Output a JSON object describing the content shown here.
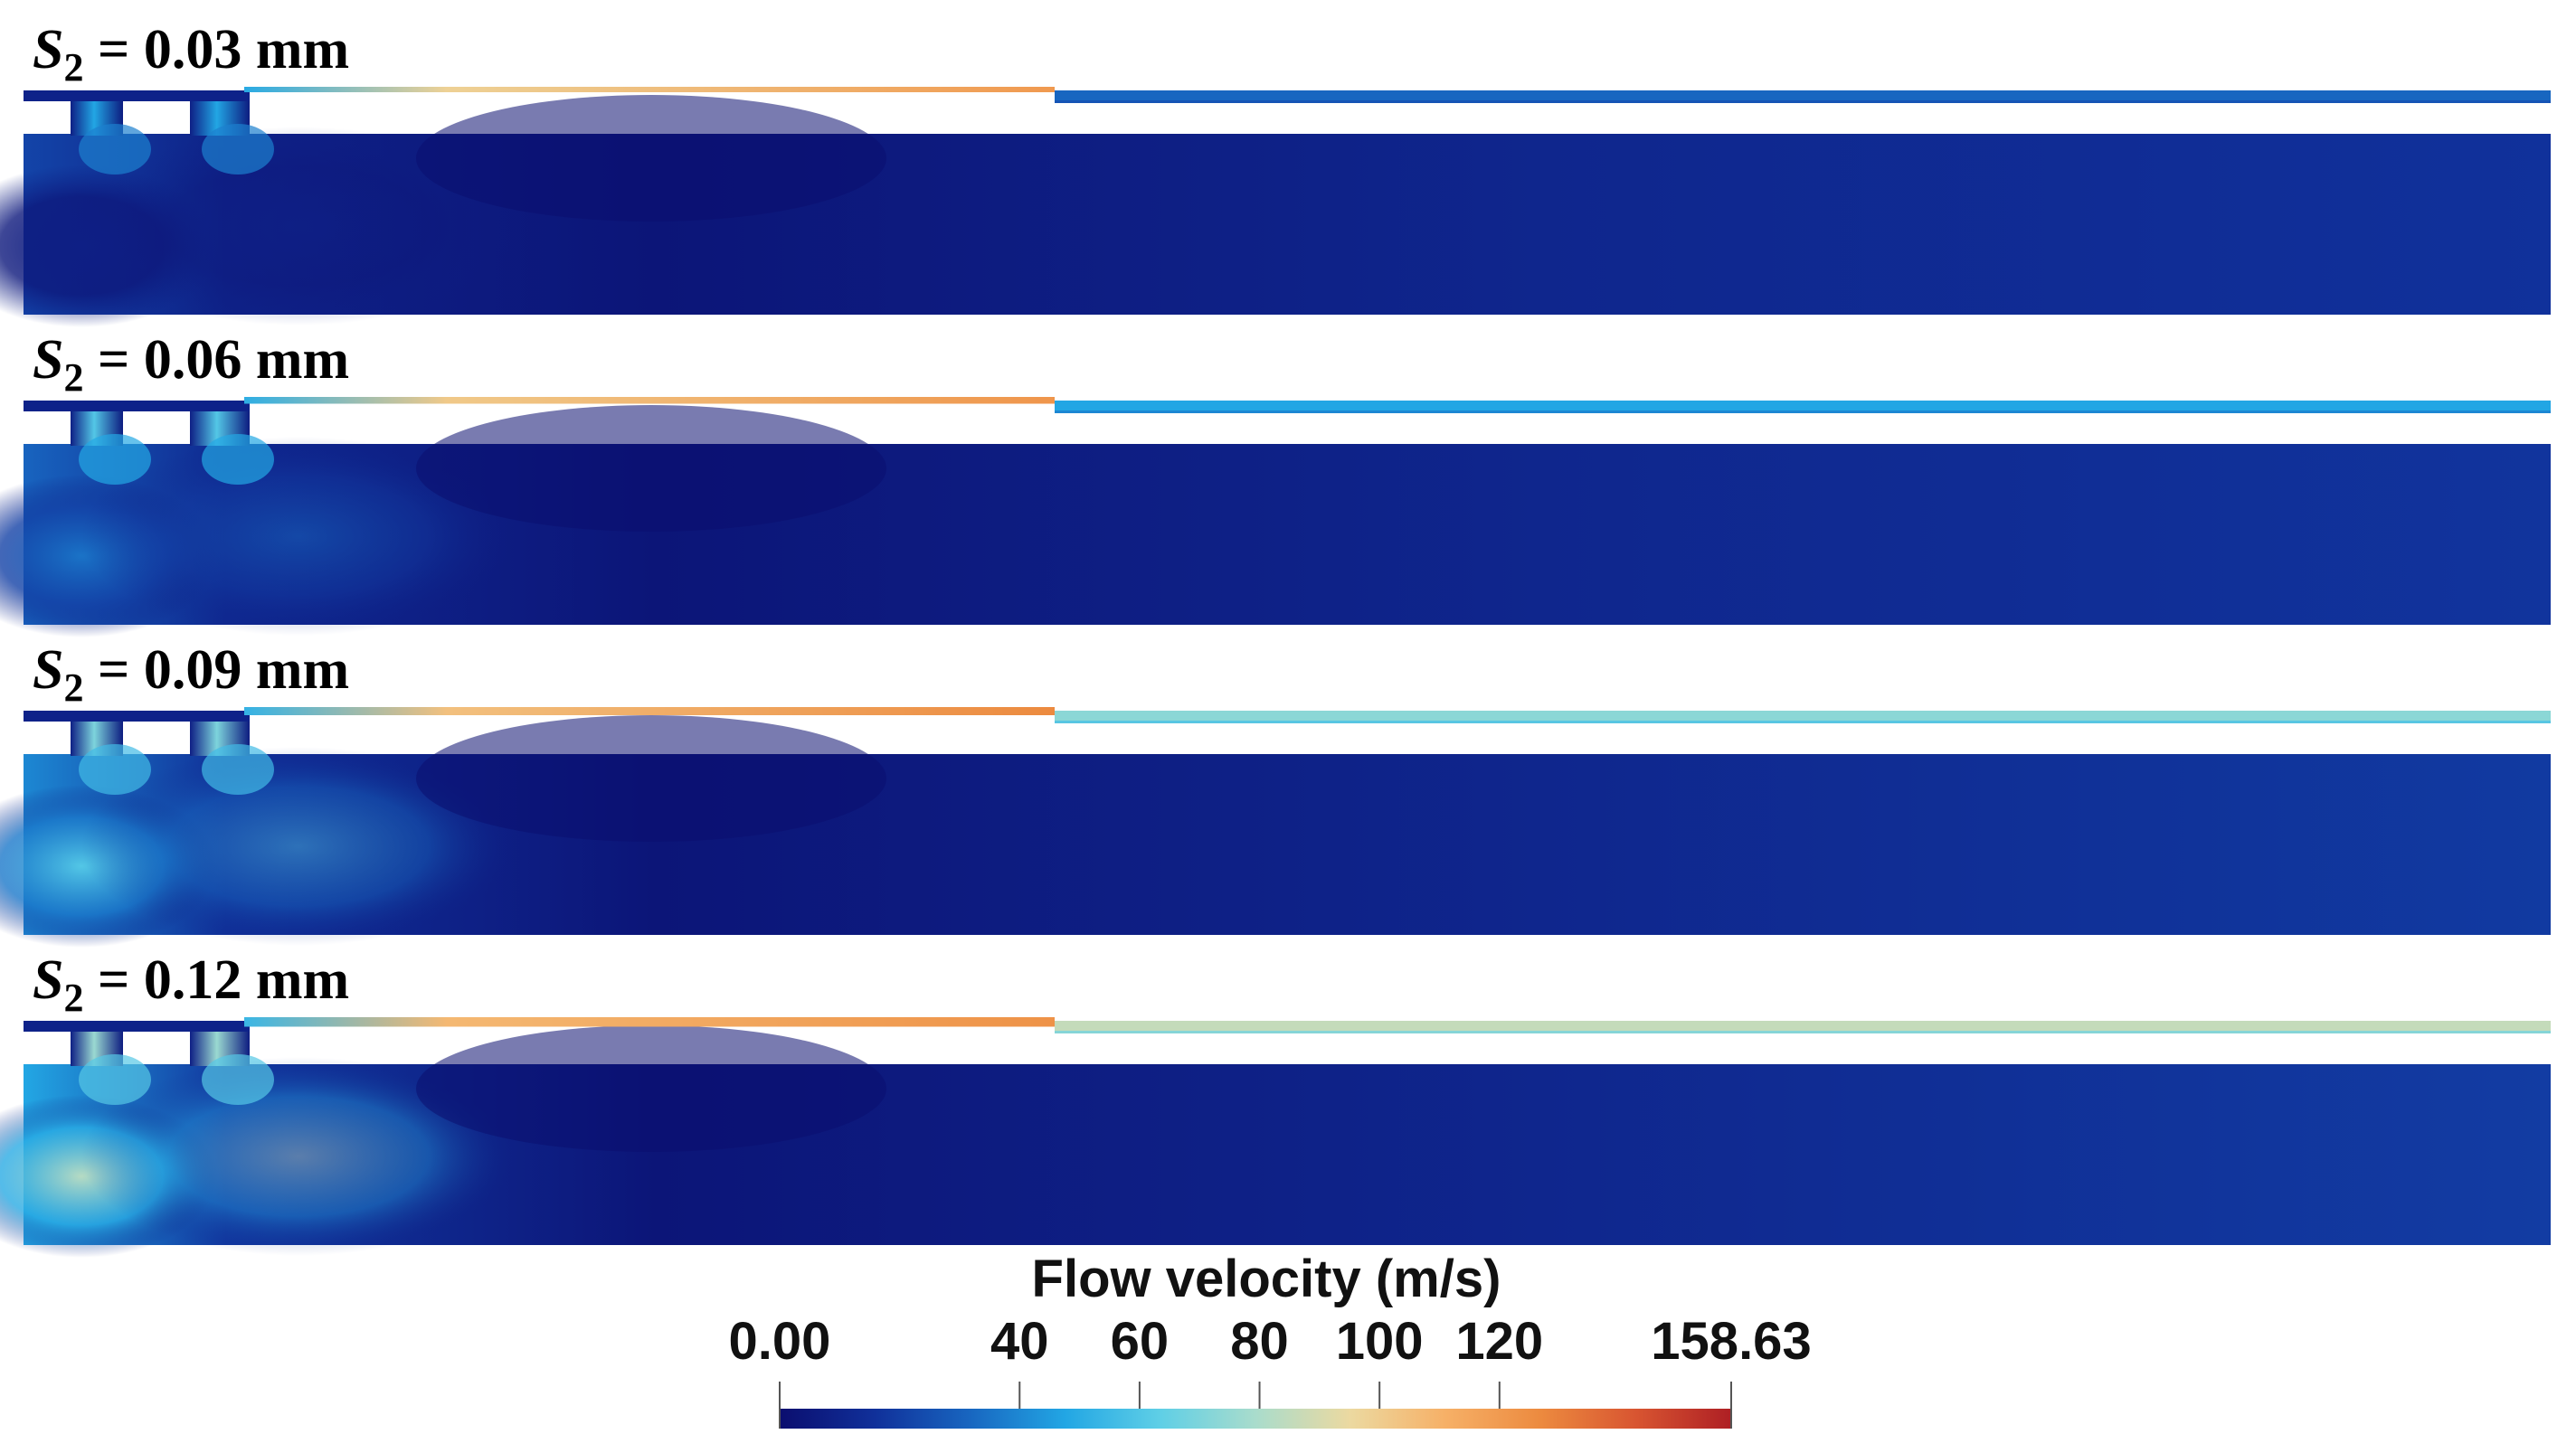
{
  "panels": [
    {
      "var": "S",
      "sub": "2",
      "text": " = 0.03 mm",
      "nozzle": 0.62,
      "jet_near": 0.76,
      "jet_far": 0.2,
      "pocket": 0.05,
      "vortex": 0.3
    },
    {
      "var": "S",
      "sub": "2",
      "text": " = 0.06 mm",
      "nozzle": 0.64,
      "jet_near": 0.77,
      "jet_far": 0.3,
      "pocket": 0.22,
      "vortex": 0.38
    },
    {
      "var": "S",
      "sub": "2",
      "text": " = 0.09 mm",
      "nozzle": 0.66,
      "jet_near": 0.8,
      "jet_far": 0.46,
      "pocket": 0.38,
      "vortex": 0.44
    },
    {
      "var": "S",
      "sub": "2",
      "text": " = 0.12 mm",
      "nozzle": 0.68,
      "jet_near": 0.78,
      "jet_far": 0.54,
      "pocket": 0.52,
      "vortex": 0.48
    }
  ],
  "colorbar": {
    "title": "Flow velocity (m/s)",
    "min": 0.0,
    "max": 158.63,
    "tick_values": [
      40,
      60,
      80,
      100,
      120
    ],
    "labels": [
      {
        "value": 0.0,
        "text": "0.00"
      },
      {
        "value": 40,
        "text": "40"
      },
      {
        "value": 60,
        "text": "60"
      },
      {
        "value": 80,
        "text": "80"
      },
      {
        "value": 100,
        "text": "100"
      },
      {
        "value": 120,
        "text": "120"
      },
      {
        "value": 158.63,
        "text": "158.63"
      }
    ],
    "colormap": [
      "#0b0e6f",
      "#10309a",
      "#1866c0",
      "#22a6e4",
      "#5fcfe6",
      "#a9dccc",
      "#ecd9a0",
      "#f6b067",
      "#ec8a3f",
      "#d85531",
      "#ae1f24"
    ]
  }
}
